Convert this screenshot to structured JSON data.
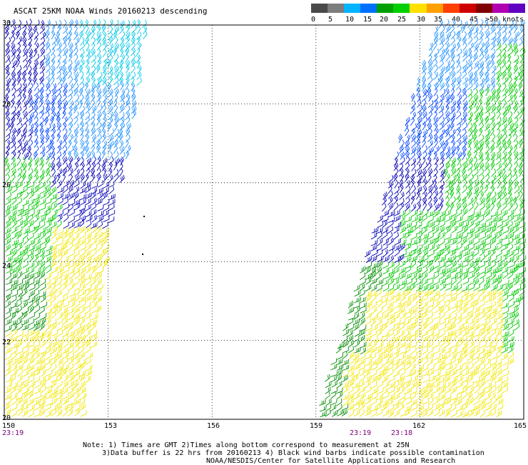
{
  "title": "ASCAT 25KM NOAA Winds 20160213 descending",
  "scale": {
    "labels": [
      "0",
      "5",
      "10",
      "15",
      "20",
      "25",
      "30",
      "35",
      "40",
      "45",
      ">50 knots"
    ],
    "colors": [
      "#4a4a4a",
      "#7d7d7d",
      "#00b4ff",
      "#0070ff",
      "#00a000",
      "#00d000",
      "#ffe000",
      "#ffa000",
      "#ff4000",
      "#d00000",
      "#800000",
      "#b000b0",
      "#6000c0"
    ]
  },
  "axes": {
    "x_ticks": [
      "150",
      "153",
      "156",
      "159",
      "162",
      "165"
    ],
    "y_ticks": [
      "30",
      "28",
      "26",
      "24",
      "22",
      "20"
    ],
    "x_range": [
      150,
      165
    ],
    "y_range": [
      20,
      30
    ]
  },
  "times": {
    "left": "23:19",
    "right_a": "23:19",
    "right_b": "23:18"
  },
  "notes": {
    "line1": "Note: 1) Times are GMT 2)Times along bottom correspond to measurement at 25N",
    "line2": "3)Data buffer is 22 hrs from 20160213 4) Black wind barbs indicate possible contamination",
    "line3": "NOAA/NESDIS/Center for Satellite Applications and Research"
  },
  "barb_colors": {
    "cyan": "#00c8e6",
    "lightblue": "#1e90ff",
    "blue": "#0046ff",
    "navy": "#0000b4",
    "green": "#00c800",
    "darkgreen": "#008c00",
    "yellow": "#f0e600"
  }
}
